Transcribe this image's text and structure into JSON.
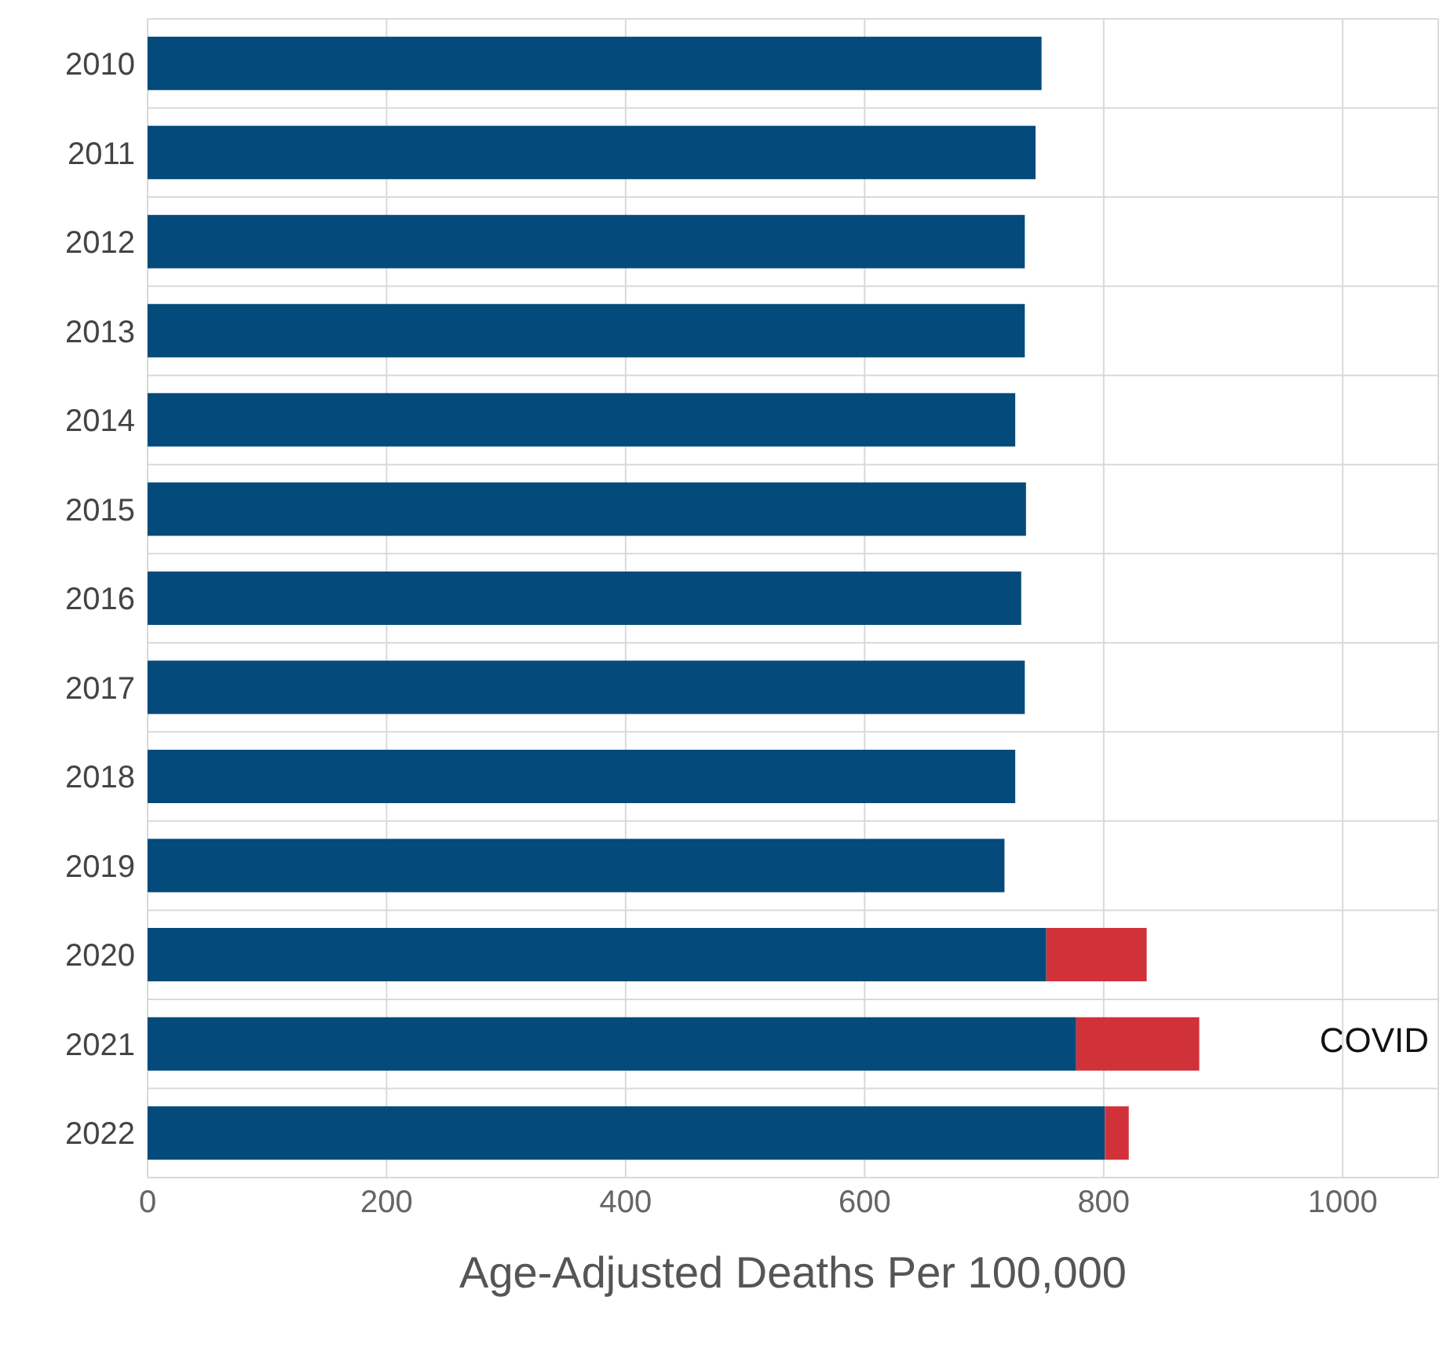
{
  "chart_data": {
    "type": "bar",
    "orientation": "horizontal",
    "stacked": true,
    "xlabel": "Age-Adjusted Deaths Per 100,000",
    "categories": [
      "2010",
      "2011",
      "2012",
      "2013",
      "2014",
      "2015",
      "2016",
      "2017",
      "2018",
      "2019",
      "2020",
      "2021",
      "2022"
    ],
    "series": [
      {
        "color": "#044a7a",
        "values": [
          748,
          743,
          734,
          734,
          726,
          735,
          731,
          734,
          726,
          717,
          752,
          777,
          801
        ]
      },
      {
        "name": "COVID",
        "color": "#d1323a",
        "values": [
          0,
          0,
          0,
          0,
          0,
          0,
          0,
          0,
          0,
          0,
          84,
          103,
          20
        ]
      }
    ],
    "xlim": [
      0,
      1080
    ],
    "xticks": [
      0,
      200,
      400,
      600,
      800,
      1000
    ],
    "grid": true,
    "legend": "right"
  }
}
